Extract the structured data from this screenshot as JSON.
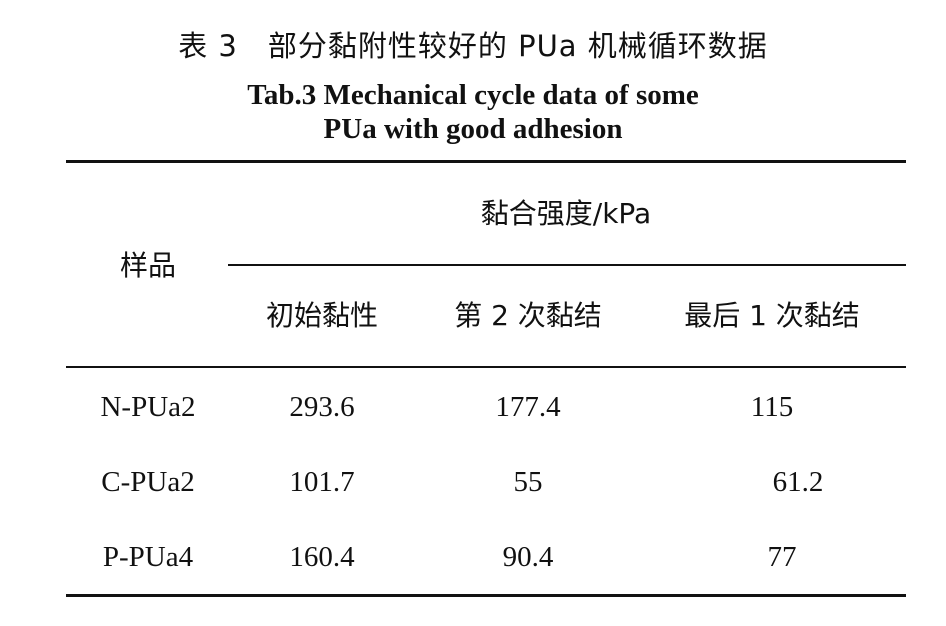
{
  "title": {
    "cn": "表 3　部分黏附性较好的 PUa 机械循环数据",
    "en_line1": "Tab.3 Mechanical cycle data of some",
    "en_line2": "PUa with good adhesion"
  },
  "table": {
    "row_header": "样品",
    "group_header": "黏合强度/kPa",
    "columns": [
      "初始黏性",
      "第 2 次黏结",
      "最后 1 次黏结"
    ],
    "rows": [
      {
        "sample": "N-PUa2",
        "values": [
          "293.6",
          "177.4",
          "115"
        ]
      },
      {
        "sample": "C-PUa2",
        "values": [
          "101.7",
          "55",
          "61.2"
        ]
      },
      {
        "sample": "P-PUa4",
        "values": [
          "160.4",
          "90.4",
          "77"
        ]
      }
    ]
  }
}
